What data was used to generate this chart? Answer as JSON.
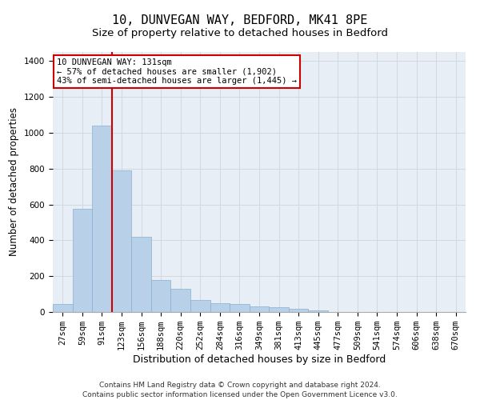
{
  "title1": "10, DUNVEGAN WAY, BEDFORD, MK41 8PE",
  "title2": "Size of property relative to detached houses in Bedford",
  "xlabel": "Distribution of detached houses by size in Bedford",
  "ylabel": "Number of detached properties",
  "categories": [
    "27sqm",
    "59sqm",
    "91sqm",
    "123sqm",
    "156sqm",
    "188sqm",
    "220sqm",
    "252sqm",
    "284sqm",
    "316sqm",
    "349sqm",
    "381sqm",
    "413sqm",
    "445sqm",
    "477sqm",
    "509sqm",
    "541sqm",
    "574sqm",
    "606sqm",
    "638sqm",
    "670sqm"
  ],
  "values": [
    45,
    575,
    1040,
    790,
    420,
    180,
    130,
    65,
    50,
    45,
    30,
    27,
    20,
    10,
    0,
    0,
    0,
    0,
    0,
    0,
    0
  ],
  "bar_color": "#b8d0e8",
  "bar_edge_color": "#8ab0d0",
  "vline_color": "#cc0000",
  "annotation_title": "10 DUNVEGAN WAY: 131sqm",
  "annotation_line1": "← 57% of detached houses are smaller (1,902)",
  "annotation_line2": "43% of semi-detached houses are larger (1,445) →",
  "annotation_box_color": "#cc0000",
  "annotation_box_fill": "#ffffff",
  "ylim": [
    0,
    1450
  ],
  "yticks": [
    0,
    200,
    400,
    600,
    800,
    1000,
    1200,
    1400
  ],
  "grid_color": "#d0d8e0",
  "bg_color": "#e8eef5",
  "footer1": "Contains HM Land Registry data © Crown copyright and database right 2024.",
  "footer2": "Contains public sector information licensed under the Open Government Licence v3.0.",
  "title1_fontsize": 11,
  "title2_fontsize": 9.5,
  "xlabel_fontsize": 9,
  "ylabel_fontsize": 8.5,
  "tick_fontsize": 7.5,
  "footer_fontsize": 6.5,
  "ann_fontsize": 7.5
}
